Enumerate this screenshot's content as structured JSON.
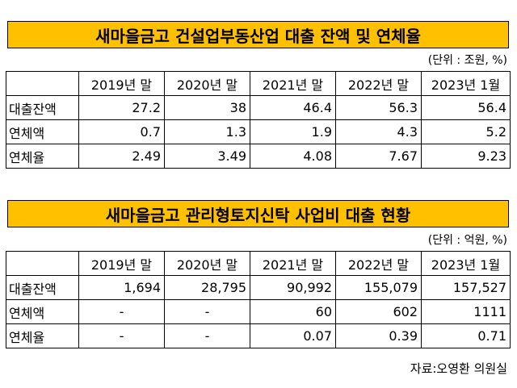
{
  "table1": {
    "title": "새마을금고 건설업부동산업 대출 잔액 및 연체율",
    "unit": "(단위 : 조원, %)",
    "columns": [
      "",
      "2019년 말",
      "2020년 말",
      "2021년 말",
      "2022년 말",
      "2023년 1월"
    ],
    "rows": [
      {
        "label": "대출잔액",
        "values": [
          "27.2",
          "38",
          "46.4",
          "56.3",
          "56.4"
        ]
      },
      {
        "label": "연체액",
        "values": [
          "0.7",
          "1.3",
          "1.9",
          "4.3",
          "5.2"
        ]
      },
      {
        "label": "연체율",
        "values": [
          "2.49",
          "3.49",
          "4.08",
          "7.67",
          "9.23"
        ]
      }
    ]
  },
  "table2": {
    "title": "새마을금고 관리형토지신탁 사업비 대출 현황",
    "unit": "(단위 : 억원, %)",
    "columns": [
      "",
      "2019년 말",
      "2020년 말",
      "2021년 말",
      "2022년 말",
      "2023년 1월"
    ],
    "rows": [
      {
        "label": "대출잔액",
        "values": [
          "1,694",
          "28,795",
          "90,992",
          "155,079",
          "157,527"
        ]
      },
      {
        "label": "연체액",
        "values": [
          "-",
          "-",
          "60",
          "602",
          "1111"
        ]
      },
      {
        "label": "연체율",
        "values": [
          "-",
          "-",
          "0.07",
          "0.39",
          "0.71"
        ]
      }
    ]
  },
  "source": "자료:오영환 의원실"
}
